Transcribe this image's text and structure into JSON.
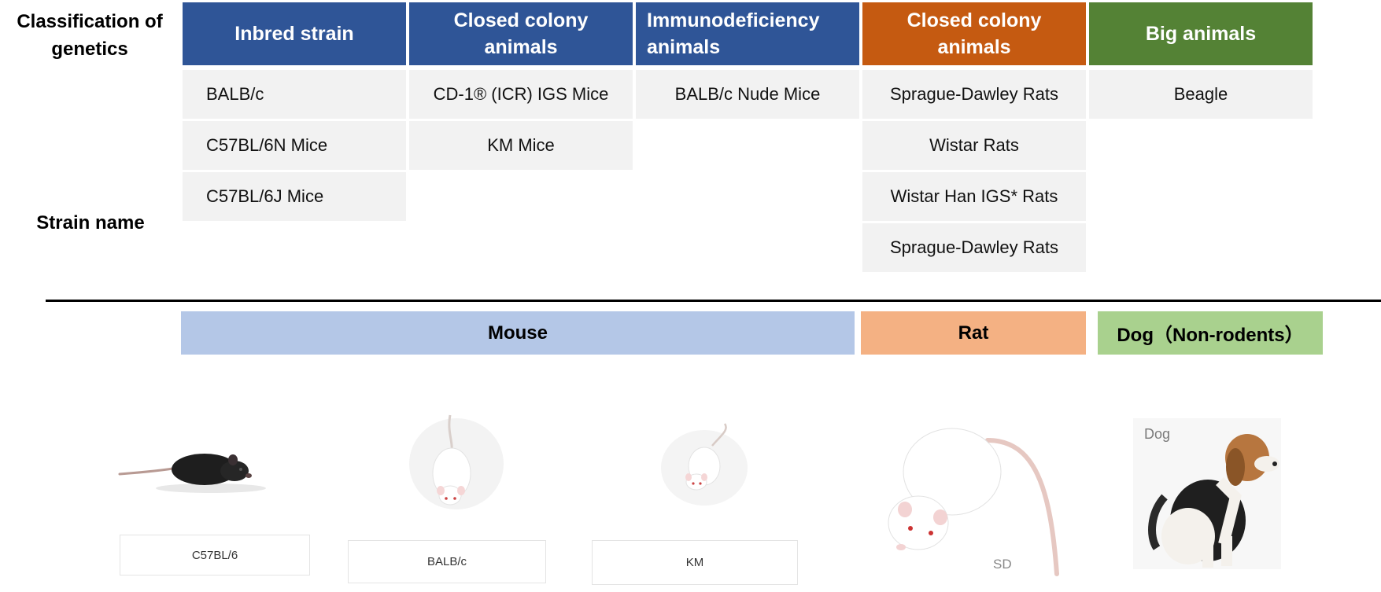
{
  "side_labels": {
    "classification": "Classification of genetics",
    "strain_name": "Strain name"
  },
  "columns": [
    {
      "header": "Inbred strain",
      "color": "#2f5597",
      "strains": [
        "BALB/c",
        "C57BL/6N Mice",
        "C57BL/6J Mice"
      ]
    },
    {
      "header": "Closed colony animals",
      "color": "#2f5597",
      "strains": [
        "CD-1® (ICR) IGS Mice",
        "KM Mice"
      ]
    },
    {
      "header": "Immunodeficiency animals",
      "color": "#2f5597",
      "strains": [
        "BALB/c Nude Mice"
      ]
    },
    {
      "header": "Closed colony animals",
      "color": "#c55a11",
      "strains": [
        "Sprague-Dawley Rats",
        "Wistar Rats",
        "Wistar Han IGS* Rats",
        "Sprague-Dawley Rats"
      ]
    },
    {
      "header": "Big animals",
      "color": "#548235",
      "strains": [
        "Beagle"
      ]
    }
  ],
  "species_bands": [
    {
      "label": "Mouse",
      "color": "#b4c7e7"
    },
    {
      "label": "Rat",
      "color": "#f4b183"
    },
    {
      "label": "Dog（Non-rodents）",
      "color": "#a9d18e"
    }
  ],
  "photos": [
    {
      "icon": "black-mouse-icon",
      "caption": "C57BL/6"
    },
    {
      "icon": "white-mouse-icon",
      "caption": "BALB/c"
    },
    {
      "icon": "white-mouse-small-icon",
      "caption": "KM"
    },
    {
      "icon": "white-rat-icon",
      "caption": "SD"
    },
    {
      "icon": "beagle-dog-icon",
      "caption": "Dog"
    }
  ]
}
